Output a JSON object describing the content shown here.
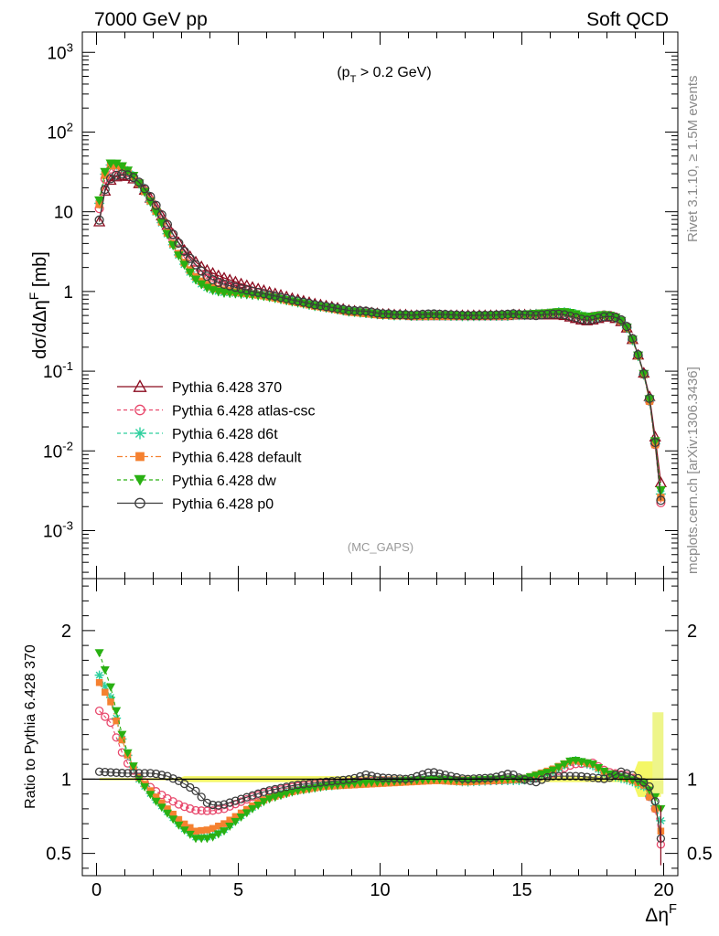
{
  "header": {
    "left": "7000 GeV pp",
    "right": "Soft QCD"
  },
  "side_text": {
    "top": "Rivet 3.1.10, ≥ 1.5M events",
    "bottom": "mcplots.cern.ch [arXiv:1306.3436]"
  },
  "watermark": "(MC_GAPS)",
  "chart_data": [
    {
      "type": "line",
      "panel": "main",
      "annotation": "(p_T > 0.2 GeV)",
      "ylabel": "dσ/dΔη^F [mb]",
      "yscale": "log",
      "ylim": [
        0.00025,
        1800
      ],
      "xlim": [
        -0.5,
        20.5
      ],
      "yticks": [
        0.001,
        0.01,
        0.1,
        1,
        10,
        100,
        1000
      ],
      "ytick_labels": [
        "10^-3",
        "10^-2",
        "10^-1",
        "1",
        "10",
        "10^2",
        "10^3"
      ],
      "legend_position": "lower-left",
      "x": [
        0.1,
        0.3,
        0.5,
        0.7,
        0.9,
        1.1,
        1.3,
        1.5,
        1.7,
        1.9,
        2.1,
        2.3,
        2.5,
        2.7,
        2.9,
        3.1,
        3.3,
        3.5,
        3.7,
        3.9,
        4.1,
        4.3,
        4.5,
        4.7,
        4.9,
        5.1,
        5.3,
        5.5,
        5.7,
        5.9,
        6.1,
        6.3,
        6.5,
        6.7,
        6.9,
        7.1,
        7.3,
        7.5,
        7.7,
        7.9,
        8.1,
        8.3,
        8.5,
        8.7,
        8.9,
        9.1,
        9.3,
        9.5,
        9.7,
        9.9,
        10.1,
        10.3,
        10.5,
        10.7,
        10.9,
        11.1,
        11.3,
        11.5,
        11.7,
        11.9,
        12.1,
        12.3,
        12.5,
        12.7,
        12.9,
        13.1,
        13.3,
        13.5,
        13.7,
        13.9,
        14.1,
        14.3,
        14.5,
        14.7,
        14.9,
        15.1,
        15.3,
        15.5,
        15.7,
        15.9,
        16.1,
        16.3,
        16.5,
        16.7,
        16.9,
        17.1,
        17.3,
        17.5,
        17.7,
        17.9,
        18.1,
        18.3,
        18.5,
        18.7,
        18.9,
        19.1,
        19.3,
        19.5,
        19.7,
        19.9
      ],
      "reference": [
        7.5,
        18.2,
        24.9,
        27.5,
        28.6,
        27.9,
        25.9,
        22.6,
        18.7,
        14.9,
        11.6,
        8.9,
        6.8,
        5.2,
        4.1,
        3.3,
        2.75,
        2.35,
        2.05,
        1.85,
        1.7,
        1.58,
        1.48,
        1.4,
        1.32,
        1.25,
        1.19,
        1.13,
        1.08,
        1.03,
        0.98,
        0.94,
        0.9,
        0.86,
        0.82,
        0.79,
        0.76,
        0.73,
        0.7,
        0.68,
        0.66,
        0.64,
        0.62,
        0.6,
        0.58,
        0.57,
        0.56,
        0.55,
        0.54,
        0.53,
        0.52,
        0.52,
        0.51,
        0.51,
        0.51,
        0.5,
        0.5,
        0.5,
        0.5,
        0.5,
        0.5,
        0.5,
        0.5,
        0.5,
        0.5,
        0.5,
        0.5,
        0.5,
        0.5,
        0.5,
        0.5,
        0.5,
        0.5,
        0.51,
        0.51,
        0.51,
        0.51,
        0.51,
        0.51,
        0.51,
        0.51,
        0.51,
        0.5,
        0.48,
        0.46,
        0.44,
        0.43,
        0.44,
        0.46,
        0.48,
        0.48,
        0.46,
        0.42,
        0.35,
        0.25,
        0.16,
        0.095,
        0.048,
        0.015,
        0.004
      ],
      "series": [
        {
          "name": "Pythia 6.428 370",
          "color": "#8b0a1e",
          "dash": "solid",
          "marker": "triangle-open",
          "ratio_key": "r370"
        },
        {
          "name": "Pythia 6.428 atlas-csc",
          "color": "#e8486c",
          "dash": "4,3",
          "marker": "circle-open",
          "ratio_key": "rcsc"
        },
        {
          "name": "Pythia 6.428 d6t",
          "color": "#2fcf9e",
          "dash": "4,3",
          "marker": "star",
          "ratio_key": "rd6t"
        },
        {
          "name": "Pythia 6.428 default",
          "color": "#f58130",
          "dash": "6,3,2,3",
          "marker": "square",
          "ratio_key": "rdef"
        },
        {
          "name": "Pythia 6.428 dw",
          "color": "#29b012",
          "dash": "4,3",
          "marker": "triangle-down",
          "ratio_key": "rdw"
        },
        {
          "name": "Pythia 6.428 p0",
          "color": "#3c3c3c",
          "dash": "solid",
          "marker": "circle-open",
          "ratio_key": "rp0"
        }
      ]
    },
    {
      "type": "line",
      "panel": "ratio",
      "ylabel": "Ratio to Pythia 6.428 370",
      "xlabel": "Δη^F",
      "ylim": [
        0.35,
        2.35
      ],
      "xlim": [
        -0.5,
        20.5
      ],
      "yticks": [
        0.5,
        1,
        2
      ],
      "xticks": [
        0,
        5,
        10,
        15,
        20
      ],
      "band_color": "#f4f766",
      "anchors": {
        "r370": [
          [
            0,
            1
          ],
          [
            20,
            1
          ]
        ],
        "rcsc": [
          [
            0.1,
            1.46
          ],
          [
            0.5,
            1.38
          ],
          [
            1.0,
            1.13
          ],
          [
            1.5,
            1.01
          ],
          [
            2.0,
            0.93
          ],
          [
            2.5,
            0.87
          ],
          [
            3.0,
            0.82
          ],
          [
            3.5,
            0.79
          ],
          [
            4.0,
            0.785
          ],
          [
            4.5,
            0.8
          ],
          [
            5.0,
            0.84
          ],
          [
            5.5,
            0.88
          ],
          [
            6.0,
            0.91
          ],
          [
            7.0,
            0.95
          ],
          [
            8.0,
            0.97
          ],
          [
            9.0,
            0.98
          ],
          [
            10.0,
            0.99
          ],
          [
            11.0,
            0.99
          ],
          [
            12.0,
            1.0
          ],
          [
            13.0,
            0.99
          ],
          [
            14.0,
            0.99
          ],
          [
            15.0,
            1.0
          ],
          [
            16.0,
            1.03
          ],
          [
            16.8,
            1.1
          ],
          [
            17.5,
            1.11
          ],
          [
            18.0,
            1.05
          ],
          [
            18.8,
            1.02
          ],
          [
            19.3,
            0.96
          ],
          [
            19.7,
            0.8
          ],
          [
            19.9,
            0.56
          ]
        ],
        "rd6t": [
          [
            0.1,
            1.7
          ],
          [
            0.5,
            1.55
          ],
          [
            1.0,
            1.2
          ],
          [
            1.5,
            1.0
          ],
          [
            2.0,
            0.88
          ],
          [
            2.5,
            0.78
          ],
          [
            3.0,
            0.68
          ],
          [
            3.5,
            0.61
          ],
          [
            4.0,
            0.61
          ],
          [
            4.5,
            0.66
          ],
          [
            5.0,
            0.74
          ],
          [
            5.5,
            0.81
          ],
          [
            6.0,
            0.87
          ],
          [
            7.0,
            0.92
          ],
          [
            8.0,
            0.95
          ],
          [
            9.0,
            0.97
          ],
          [
            10.0,
            0.98
          ],
          [
            11.0,
            0.99
          ],
          [
            12.0,
            1.0
          ],
          [
            13.0,
            0.98
          ],
          [
            14.0,
            0.99
          ],
          [
            15.0,
            0.99
          ],
          [
            16.0,
            1.04
          ],
          [
            16.8,
            1.13
          ],
          [
            17.5,
            1.09
          ],
          [
            18.0,
            1.03
          ],
          [
            18.8,
            0.99
          ],
          [
            19.3,
            0.95
          ],
          [
            19.7,
            0.82
          ],
          [
            19.9,
            0.72
          ]
        ],
        "rdef": [
          [
            0.1,
            1.65
          ],
          [
            0.5,
            1.52
          ],
          [
            1.0,
            1.2
          ],
          [
            1.5,
            1.01
          ],
          [
            2.0,
            0.9
          ],
          [
            2.5,
            0.8
          ],
          [
            3.0,
            0.71
          ],
          [
            3.5,
            0.65
          ],
          [
            4.0,
            0.66
          ],
          [
            4.5,
            0.7
          ],
          [
            5.0,
            0.76
          ],
          [
            5.5,
            0.82
          ],
          [
            6.0,
            0.87
          ],
          [
            7.0,
            0.92
          ],
          [
            8.0,
            0.95
          ],
          [
            9.0,
            0.96
          ],
          [
            10.0,
            0.97
          ],
          [
            11.0,
            0.98
          ],
          [
            12.0,
            0.99
          ],
          [
            13.0,
            0.98
          ],
          [
            14.0,
            0.99
          ],
          [
            15.0,
            1.0
          ],
          [
            16.0,
            1.06
          ],
          [
            16.8,
            1.13
          ],
          [
            17.5,
            1.1
          ],
          [
            18.0,
            1.04
          ],
          [
            18.8,
            1.0
          ],
          [
            19.3,
            0.96
          ],
          [
            19.7,
            0.8
          ],
          [
            19.9,
            0.65
          ]
        ],
        "rdw": [
          [
            0.1,
            1.85
          ],
          [
            0.5,
            1.62
          ],
          [
            1.0,
            1.22
          ],
          [
            1.5,
            1.0
          ],
          [
            2.0,
            0.87
          ],
          [
            2.5,
            0.77
          ],
          [
            3.0,
            0.67
          ],
          [
            3.5,
            0.6
          ],
          [
            4.0,
            0.6
          ],
          [
            4.5,
            0.65
          ],
          [
            5.0,
            0.73
          ],
          [
            5.5,
            0.8
          ],
          [
            6.0,
            0.86
          ],
          [
            7.0,
            0.92
          ],
          [
            8.0,
            0.95
          ],
          [
            9.0,
            0.97
          ],
          [
            10.0,
            0.98
          ],
          [
            11.0,
            0.99
          ],
          [
            12.0,
            1.0
          ],
          [
            13.0,
            0.99
          ],
          [
            14.0,
            1.0
          ],
          [
            15.0,
            1.0
          ],
          [
            16.0,
            1.05
          ],
          [
            16.8,
            1.13
          ],
          [
            17.5,
            1.1
          ],
          [
            18.0,
            1.04
          ],
          [
            18.8,
            1.0
          ],
          [
            19.3,
            0.97
          ],
          [
            19.7,
            0.88
          ],
          [
            19.9,
            0.8
          ]
        ],
        "rp0": [
          [
            0.1,
            1.05
          ],
          [
            1.0,
            1.04
          ],
          [
            2.0,
            1.04
          ],
          [
            2.5,
            1.02
          ],
          [
            3.0,
            0.98
          ],
          [
            3.5,
            0.92
          ],
          [
            3.9,
            0.84
          ],
          [
            4.2,
            0.82
          ],
          [
            4.5,
            0.83
          ],
          [
            5.0,
            0.86
          ],
          [
            5.5,
            0.89
          ],
          [
            6.0,
            0.92
          ],
          [
            7.0,
            0.96
          ],
          [
            8.0,
            0.98
          ],
          [
            9.0,
            1.0
          ],
          [
            9.5,
            1.03
          ],
          [
            10.0,
            1.01
          ],
          [
            11.0,
            1.0
          ],
          [
            11.8,
            1.05
          ],
          [
            12.5,
            1.02
          ],
          [
            13.0,
            1.0
          ],
          [
            14.0,
            1.01
          ],
          [
            14.6,
            1.04
          ],
          [
            15.0,
            1.0
          ],
          [
            15.5,
            0.98
          ],
          [
            16.0,
            1.02
          ],
          [
            17.0,
            1.02
          ],
          [
            18.0,
            1.0
          ],
          [
            18.5,
            1.05
          ],
          [
            19.0,
            1.02
          ],
          [
            19.5,
            0.95
          ],
          [
            19.7,
            0.85
          ],
          [
            19.9,
            0.6
          ]
        ]
      }
    }
  ]
}
